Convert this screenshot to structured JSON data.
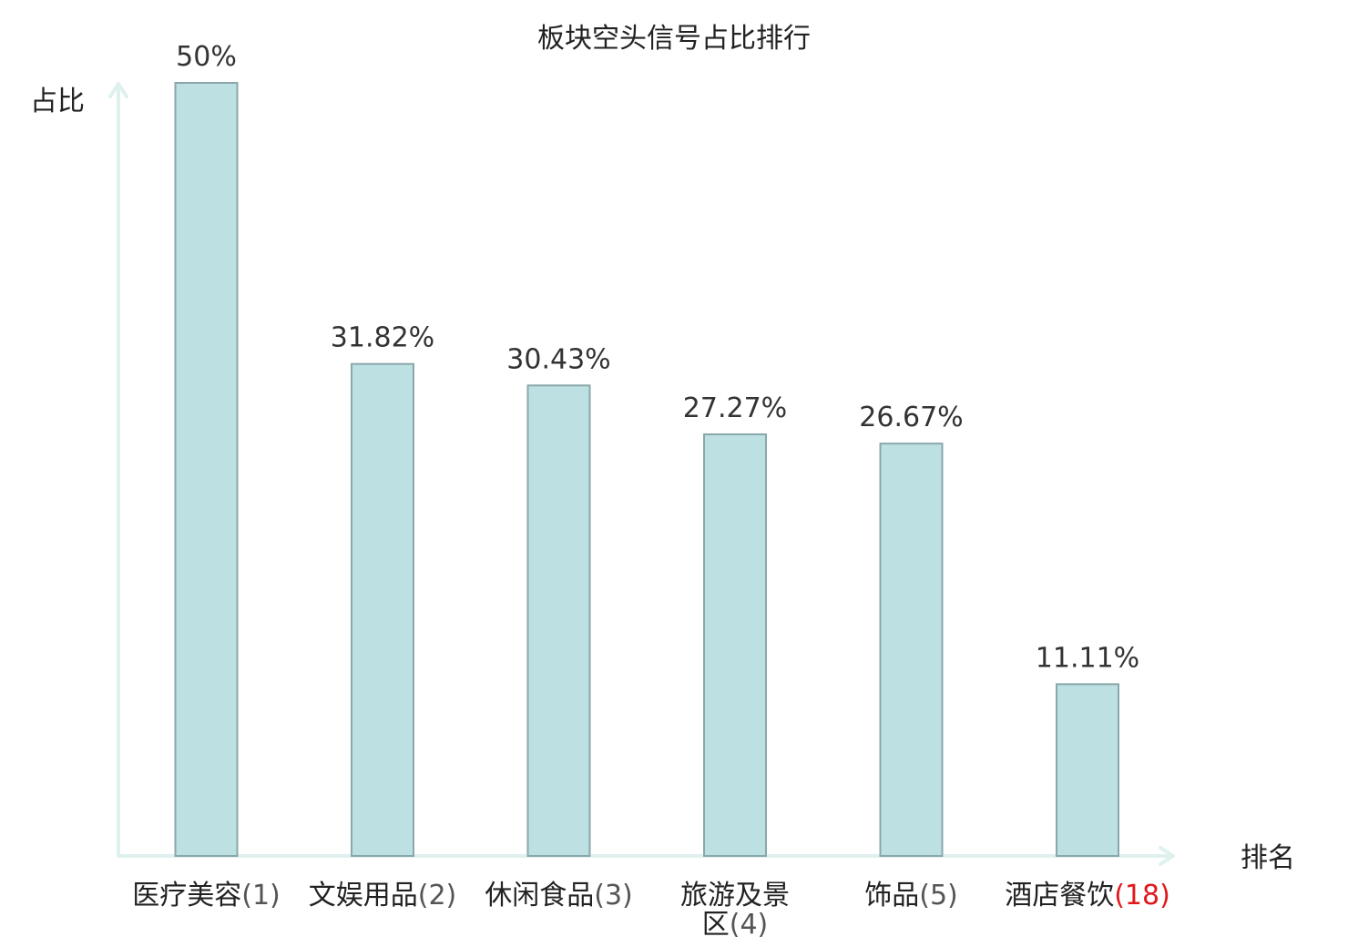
{
  "chart_data": {
    "type": "bar",
    "title": "板块空头信号占比排行",
    "ylabel": "占比",
    "xlabel": "排名",
    "categories": [
      {
        "name": "医疗美容",
        "rank": "(1)",
        "highlight": false
      },
      {
        "name": "文娱用品",
        "rank": "(2)",
        "highlight": false
      },
      {
        "name": "休闲食品",
        "rank": "(3)",
        "highlight": false
      },
      {
        "name": "旅游及景区",
        "rank": "(4)",
        "highlight": false
      },
      {
        "name": "饰品",
        "rank": "(5)",
        "highlight": false
      },
      {
        "name": "酒店餐饮",
        "rank": "(18)",
        "highlight": true
      }
    ],
    "values": [
      50,
      31.82,
      30.43,
      27.27,
      26.67,
      11.11
    ],
    "value_labels": [
      "50%",
      "31.82%",
      "30.43%",
      "27.27%",
      "26.67%",
      "11.11%"
    ],
    "ylim": [
      0,
      50
    ],
    "grid": false,
    "colors": {
      "bar_fill": "#bde0e3",
      "bar_stroke": "#8aa7aa",
      "axis": "#dff1ef",
      "highlight_text": "#e0181b",
      "text": "#222222"
    }
  }
}
